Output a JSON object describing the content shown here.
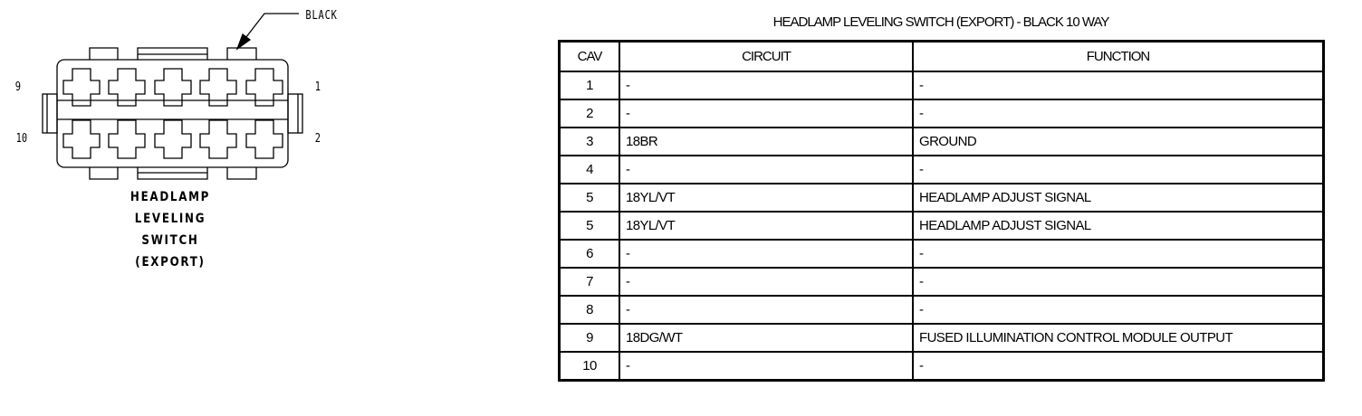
{
  "connector": {
    "color_label": "BLACK",
    "pin_labels": {
      "top_left": "9",
      "bottom_left": "10",
      "top_right": "1",
      "bottom_right": "2"
    },
    "name_lines": [
      "HEADLAMP",
      "LEVELING",
      "SWITCH",
      "(EXPORT)"
    ]
  },
  "table": {
    "title": "HEADLAMP LEVELING SWITCH (EXPORT) - BLACK 10 WAY",
    "headers": [
      "CAV",
      "CIRCUIT",
      "FUNCTION"
    ],
    "rows": [
      [
        "1",
        "-",
        "-"
      ],
      [
        "2",
        "-",
        "-"
      ],
      [
        "3",
        "18BR",
        "GROUND"
      ],
      [
        "4",
        "-",
        "-"
      ],
      [
        "5",
        "18YL/VT",
        "HEADLAMP ADJUST SIGNAL"
      ],
      [
        "5",
        "18YL/VT",
        "HEADLAMP ADJUST SIGNAL"
      ],
      [
        "6",
        "-",
        "-"
      ],
      [
        "7",
        "-",
        "-"
      ],
      [
        "8",
        "-",
        "-"
      ],
      [
        "9",
        "18DG/WT",
        "FUSED ILLUMINATION CONTROL MODULE OUTPUT"
      ],
      [
        "10",
        "-",
        "-"
      ]
    ]
  }
}
